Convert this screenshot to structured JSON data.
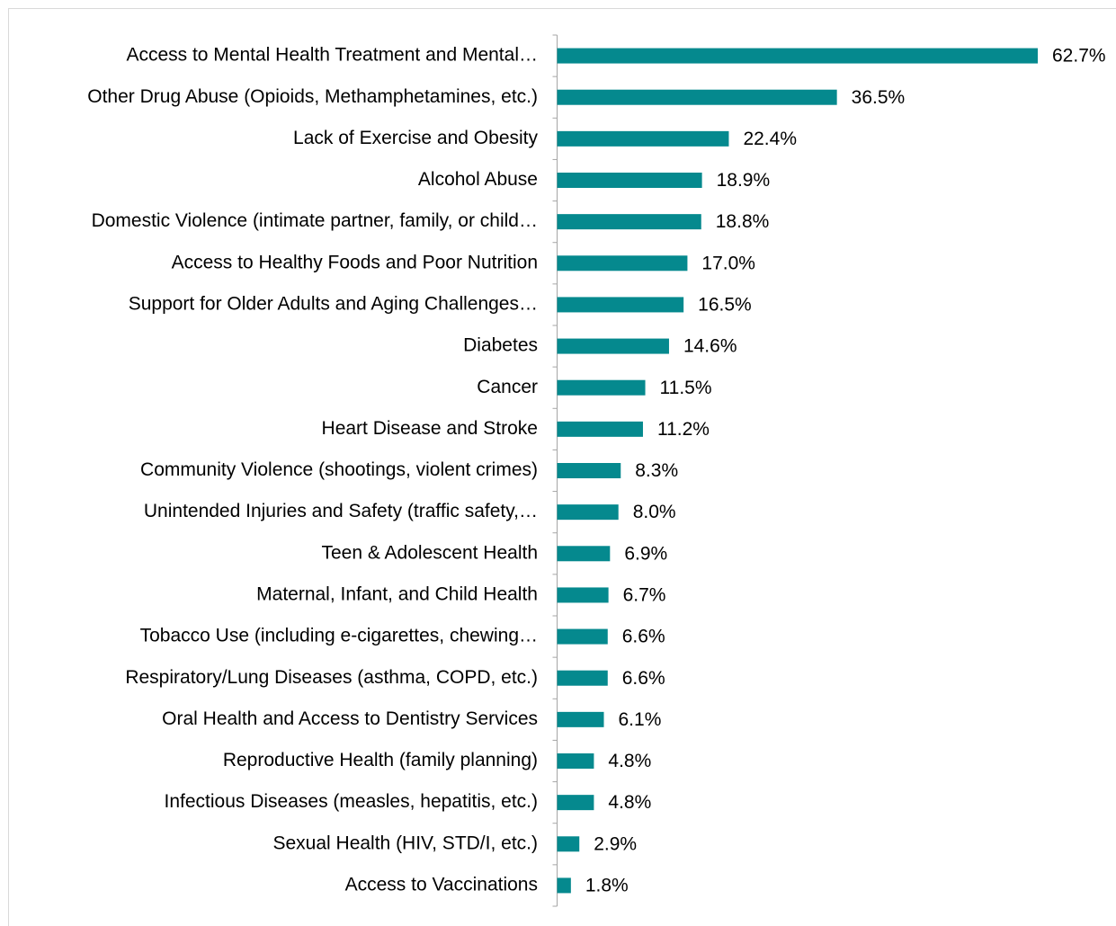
{
  "chart_data": {
    "type": "bar",
    "orientation": "horizontal",
    "categories": [
      "Access to Mental Health Treatment and Mental…",
      "Other Drug Abuse (Opioids, Methamphetamines, etc.)",
      "Lack of Exercise and Obesity",
      "Alcohol Abuse",
      "Domestic Violence (intimate partner, family, or child…",
      "Access to Healthy Foods and Poor Nutrition",
      "Support for Older Adults and Aging Challenges…",
      "Diabetes",
      "Cancer",
      "Heart Disease and Stroke",
      "Community Violence (shootings, violent crimes)",
      "Unintended Injuries and Safety (traffic safety,…",
      "Teen & Adolescent Health",
      "Maternal, Infant, and Child Health",
      "Tobacco Use (including e-cigarettes, chewing…",
      "Respiratory/Lung Diseases (asthma, COPD, etc.)",
      "Oral Health and Access to Dentistry Services",
      "Reproductive Health (family planning)",
      "Infectious Diseases (measles, hepatitis, etc.)",
      "Sexual Health (HIV, STD/I, etc.)",
      "Access to Vaccinations"
    ],
    "values": [
      62.7,
      36.5,
      22.4,
      18.9,
      18.8,
      17.0,
      16.5,
      14.6,
      11.5,
      11.2,
      8.3,
      8.0,
      6.9,
      6.7,
      6.6,
      6.6,
      6.1,
      4.8,
      4.8,
      2.9,
      1.8
    ],
    "value_labels": [
      "62.7%",
      "36.5%",
      "22.4%",
      "18.9%",
      "18.8%",
      "17.0%",
      "16.5%",
      "14.6%",
      "11.5%",
      "11.2%",
      "8.3%",
      "8.0%",
      "6.9%",
      "6.7%",
      "6.6%",
      "6.6%",
      "6.1%",
      "4.8%",
      "4.8%",
      "2.9%",
      "1.8%"
    ],
    "color": "#05898e"
  }
}
